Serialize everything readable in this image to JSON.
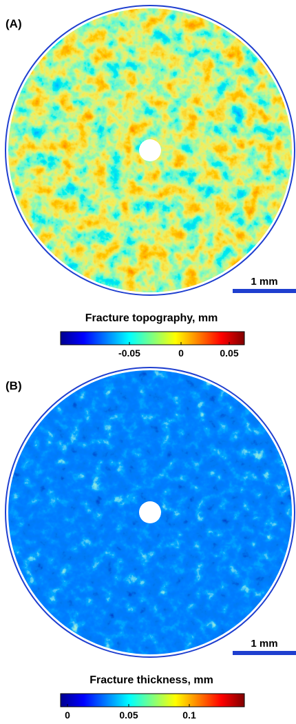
{
  "panels": [
    {
      "label": "(A)",
      "scale_bar": "1 mm",
      "colorbar": {
        "title": "Fracture topography, mm",
        "ticks": [
          "-0.05",
          "0",
          "0.05"
        ]
      }
    },
    {
      "label": "(B)",
      "scale_bar": "1 mm",
      "colorbar": {
        "title": "Fracture thickness, mm",
        "ticks": [
          "0",
          "0.05",
          "0.1"
        ]
      }
    }
  ]
}
